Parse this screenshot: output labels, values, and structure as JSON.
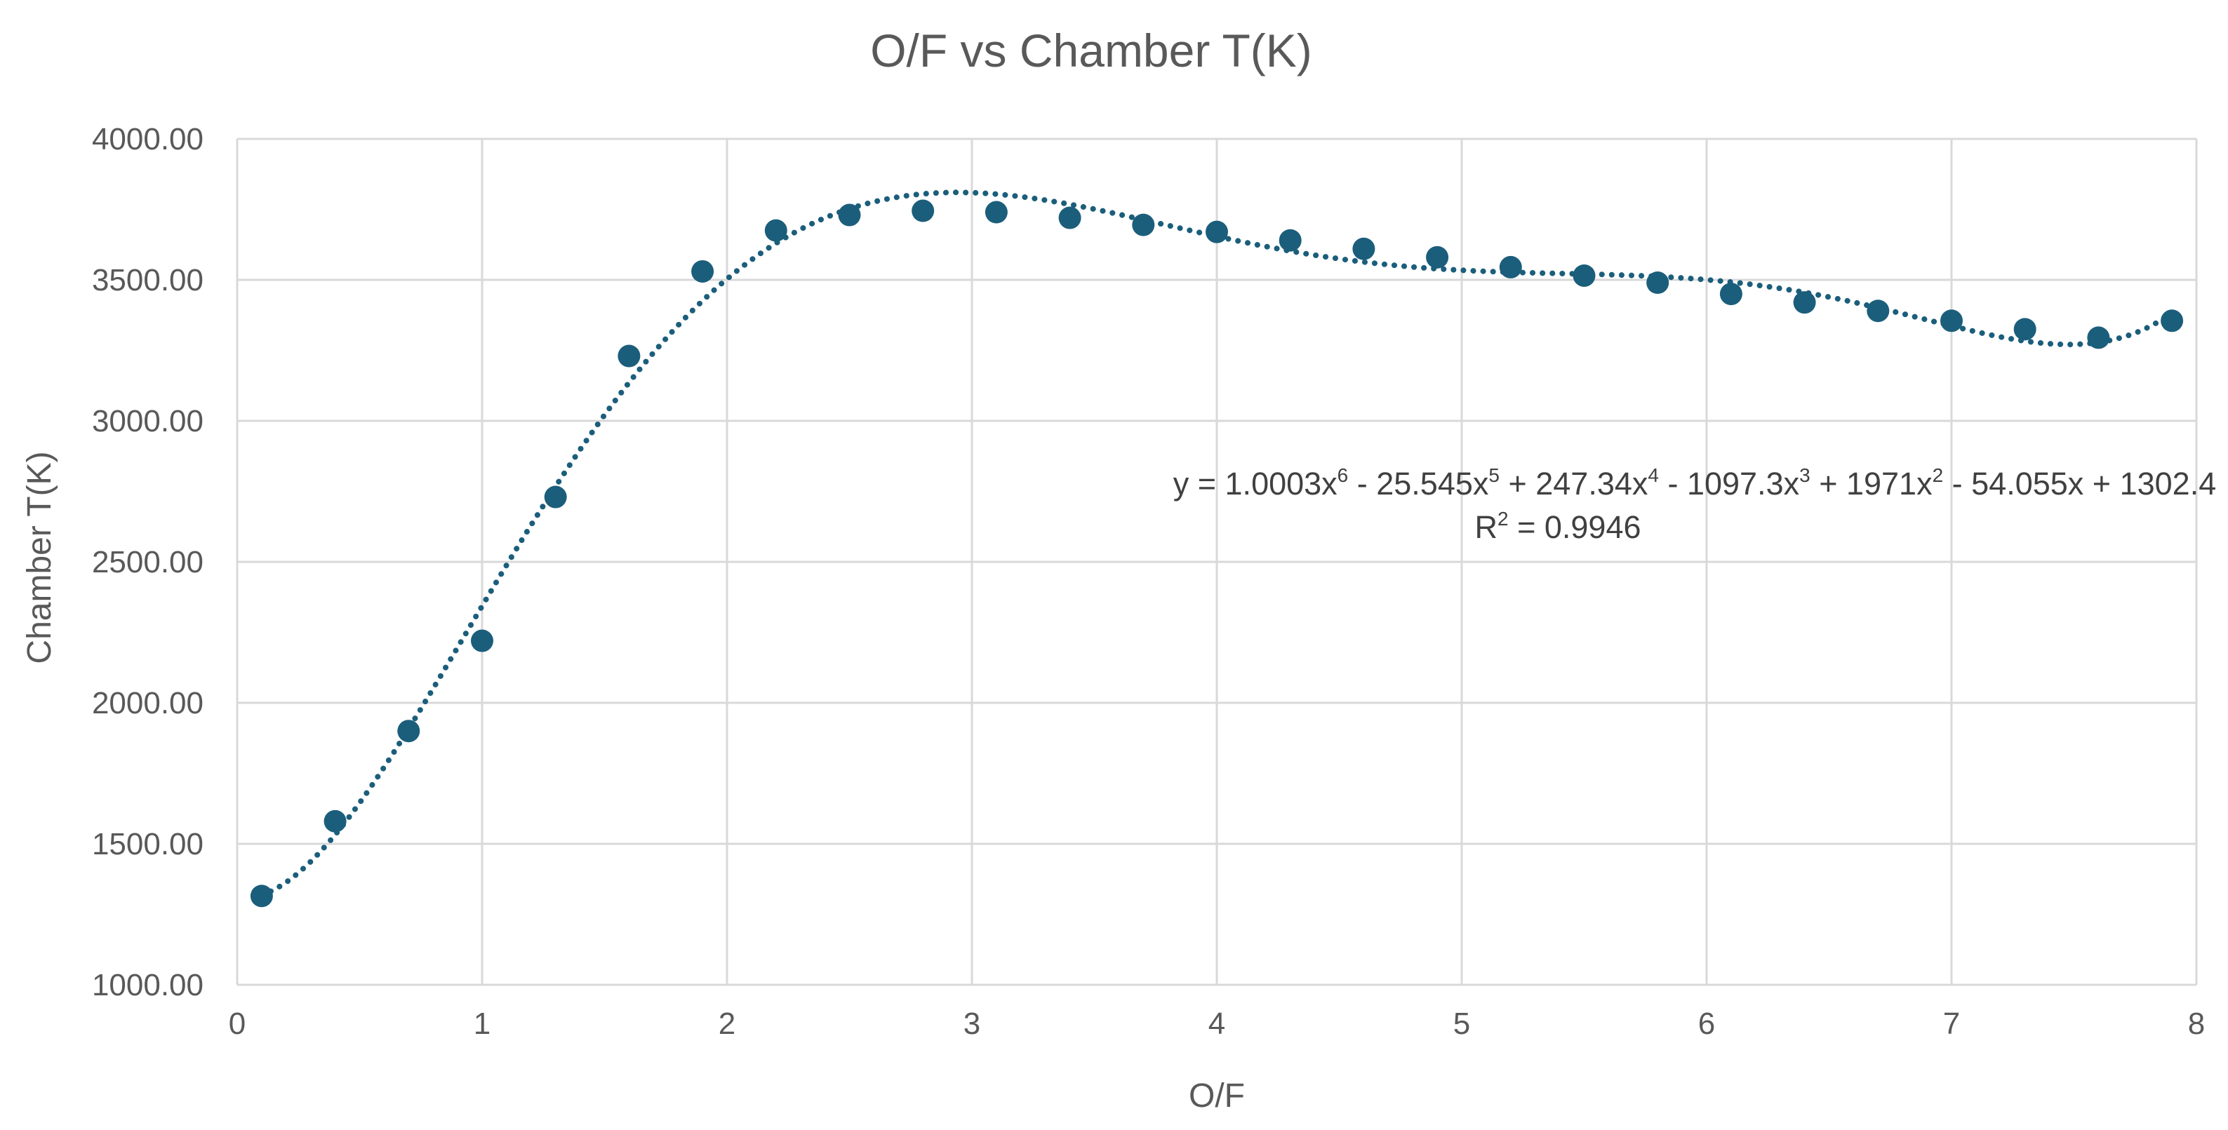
{
  "chart_data": {
    "type": "scatter",
    "title": "O/F vs Chamber T(K)",
    "xlabel": "O/F",
    "ylabel": "Chamber T(K)",
    "xlim": [
      0,
      8
    ],
    "ylim": [
      1000,
      4000
    ],
    "x_ticks": [
      "0",
      "1",
      "2",
      "3",
      "4",
      "5",
      "6",
      "7",
      "8"
    ],
    "y_ticks": [
      "1000.00",
      "1500.00",
      "2000.00",
      "2500.00",
      "3000.00",
      "3500.00",
      "4000.00"
    ],
    "grid": true,
    "marker_color": "#1B5E7B",
    "series": [
      {
        "x": [
          0.1,
          0.4,
          0.7,
          1.0,
          1.3,
          1.6,
          1.9,
          2.2,
          2.5,
          2.8,
          3.1,
          3.4,
          3.7,
          4.0,
          4.3,
          4.6,
          4.9,
          5.2,
          5.5,
          5.8,
          6.1,
          6.4,
          6.7,
          7.0,
          7.3,
          7.6,
          7.9
        ],
        "y": [
          1315,
          1580,
          1900,
          2220,
          2730,
          3230,
          3530,
          3675,
          3730,
          3745,
          3740,
          3720,
          3695,
          3670,
          3640,
          3610,
          3580,
          3545,
          3515,
          3490,
          3450,
          3420,
          3390,
          3355,
          3325,
          3295,
          3355
        ]
      }
    ],
    "trendline": {
      "type": "polynomial",
      "order": 6,
      "style": "dotted",
      "equation_text": {
        "parts": [
          "y = 1.0003x",
          "6",
          " - 25.545x",
          "5",
          " + 247.34x",
          "4",
          " - 1097.3x",
          "3",
          " + 1971x",
          "2",
          " - 54.055x + 1302.4"
        ]
      },
      "r2_text": {
        "prefix": "R",
        "sup": "2",
        "suffix": " = 0.9946"
      }
    }
  }
}
